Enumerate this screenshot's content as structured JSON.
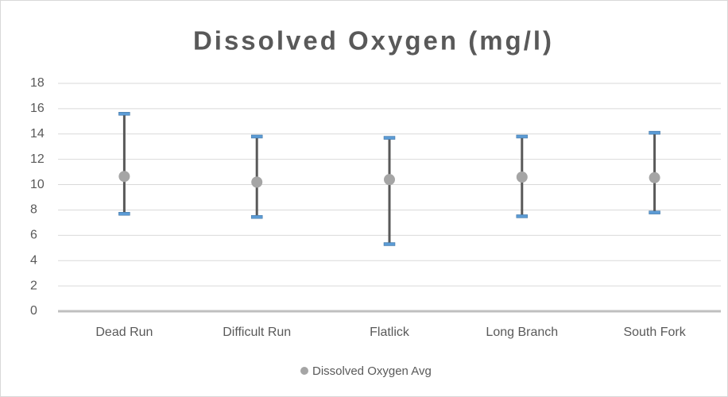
{
  "chart_data": {
    "type": "high-low-avg",
    "title": "Dissolved Oxygen (mg/l)",
    "categories": [
      "Dead Run",
      "Difficult Run",
      "Flatlick",
      "Long Branch",
      "South Fork"
    ],
    "series": [
      {
        "name": "Dissolved Oxygen Avg",
        "color": "#a5a5a5",
        "values": [
          10.65,
          10.2,
          10.4,
          10.6,
          10.55
        ]
      }
    ],
    "high": [
      15.6,
      13.8,
      13.7,
      13.8,
      14.1
    ],
    "low": [
      7.7,
      7.45,
      5.3,
      7.5,
      7.8
    ],
    "bar_color": "#595959",
    "cap_color": "#5b9bd5",
    "ylim": [
      0,
      18
    ],
    "yticks": [
      0,
      2,
      4,
      6,
      8,
      10,
      12,
      14,
      16,
      18
    ],
    "grid": true,
    "legend": "bottom"
  }
}
